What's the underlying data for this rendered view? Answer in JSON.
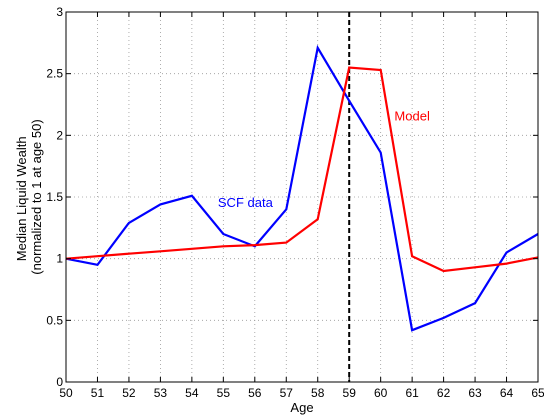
{
  "chart_data": {
    "type": "line",
    "title": "",
    "xlabel": "Age",
    "ylabel": [
      "Median Liquid Wealth",
      "(normalized to 1 at age 50)"
    ],
    "xlim": [
      50,
      65
    ],
    "ylim": [
      0,
      3
    ],
    "x_ticks": [
      50,
      51,
      52,
      53,
      54,
      55,
      56,
      57,
      58,
      59,
      60,
      61,
      62,
      63,
      64,
      65
    ],
    "y_ticks": [
      0,
      0.5,
      1,
      1.5,
      2,
      2.5,
      3
    ],
    "y_tick_labels": [
      "0",
      "0.5",
      "1",
      "1.5",
      "2",
      "2.5",
      "3"
    ],
    "grid": true,
    "grid_style": "dotted",
    "legend": "none",
    "vertical_marker": {
      "x": 59,
      "style": "dashed",
      "color": "#000000"
    },
    "x": [
      50,
      51,
      52,
      53,
      54,
      55,
      56,
      57,
      58,
      59,
      60,
      61,
      62,
      63,
      64,
      65
    ],
    "series": [
      {
        "name": "SCF data",
        "color": "#0000ff",
        "values": [
          1.0,
          0.95,
          1.29,
          1.44,
          1.51,
          1.2,
          1.1,
          1.4,
          2.71,
          2.28,
          1.86,
          0.42,
          0.52,
          0.64,
          1.05,
          1.2
        ]
      },
      {
        "name": "Model",
        "color": "#ff0000",
        "values": [
          1.0,
          1.02,
          1.04,
          1.06,
          1.08,
          1.1,
          1.11,
          1.13,
          1.32,
          2.55,
          2.53,
          1.02,
          0.9,
          0.93,
          0.96,
          1.01
        ]
      }
    ],
    "annotations": [
      {
        "text": "SCF data",
        "x": 55.7,
        "y": 1.42,
        "color": "#0000ff"
      },
      {
        "text": "Model",
        "x": 61.0,
        "y": 2.12,
        "color": "#ff0000"
      }
    ]
  }
}
